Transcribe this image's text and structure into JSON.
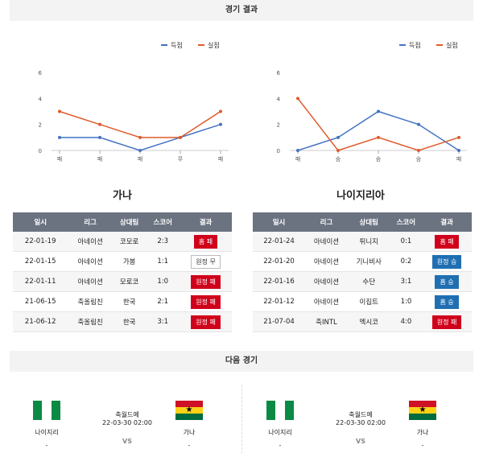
{
  "sections": {
    "results_title": "경기 결과",
    "next_title": "다음 경기"
  },
  "legend": {
    "scored": "득점",
    "conceded": "실점"
  },
  "colors": {
    "scored": "#4472c4",
    "conceded": "#e05a2b"
  },
  "chart_data": [
    {
      "type": "line",
      "categories": [
        "패",
        "패",
        "패",
        "무",
        "패"
      ],
      "series": [
        {
          "name": "득점",
          "values": [
            1,
            1,
            0,
            1,
            2
          ]
        },
        {
          "name": "실점",
          "values": [
            3,
            2,
            1,
            1,
            3
          ]
        }
      ],
      "yticks": [
        0,
        2,
        4,
        6
      ],
      "ylim": [
        0,
        6
      ],
      "legend": "top-right"
    },
    {
      "type": "line",
      "categories": [
        "패",
        "승",
        "승",
        "승",
        "패"
      ],
      "series": [
        {
          "name": "득점",
          "values": [
            0,
            1,
            3,
            2,
            0
          ]
        },
        {
          "name": "실점",
          "values": [
            4,
            0,
            1,
            0,
            1
          ]
        }
      ],
      "yticks": [
        0,
        2,
        4,
        6
      ],
      "ylim": [
        0,
        6
      ],
      "legend": "top-right"
    }
  ],
  "table_headers": [
    "일시",
    "리그",
    "상대팀",
    "스코어",
    "결과"
  ],
  "teams": [
    {
      "name": "가나",
      "rows": [
        {
          "date": "22-01-19",
          "league": "아네이션",
          "opponent": "코모로",
          "score": "2:3",
          "result": "홈 패",
          "style": "red"
        },
        {
          "date": "22-01-15",
          "league": "아네이션",
          "opponent": "가봉",
          "score": "1:1",
          "result": "원정 무",
          "style": "plain"
        },
        {
          "date": "22-01-11",
          "league": "아네이션",
          "opponent": "모로코",
          "score": "1:0",
          "result": "원정 패",
          "style": "red"
        },
        {
          "date": "21-06-15",
          "league": "축올림친",
          "opponent": "한국",
          "score": "2:1",
          "result": "원정 패",
          "style": "red"
        },
        {
          "date": "21-06-12",
          "league": "축올림친",
          "opponent": "한국",
          "score": "3:1",
          "result": "원정 패",
          "style": "red"
        }
      ]
    },
    {
      "name": "나이지리아",
      "rows": [
        {
          "date": "22-01-24",
          "league": "아네이션",
          "opponent": "튀니지",
          "score": "0:1",
          "result": "홈 패",
          "style": "red"
        },
        {
          "date": "22-01-20",
          "league": "아네이션",
          "opponent": "기니비사",
          "score": "0:2",
          "result": "원정 승",
          "style": "blue"
        },
        {
          "date": "22-01-16",
          "league": "아네이션",
          "opponent": "수단",
          "score": "3:1",
          "result": "홈 승",
          "style": "blue"
        },
        {
          "date": "22-01-12",
          "league": "아네이션",
          "opponent": "이집트",
          "score": "1:0",
          "result": "홈 승",
          "style": "blue"
        },
        {
          "date": "21-07-04",
          "league": "축INTL",
          "opponent": "멕시코",
          "score": "4:0",
          "result": "원정 패",
          "style": "red"
        }
      ]
    }
  ],
  "next_matches": [
    {
      "home": "나이지리",
      "away": "가나",
      "league": "축월드예",
      "datetime": "22-03-30 02:00",
      "vs": "VS",
      "home_sub": "-",
      "away_sub": "-"
    },
    {
      "home": "나이지리",
      "away": "가나",
      "league": "축월드예",
      "datetime": "22-03-30 02:00",
      "vs": "VS",
      "home_sub": "-",
      "away_sub": "-"
    }
  ]
}
